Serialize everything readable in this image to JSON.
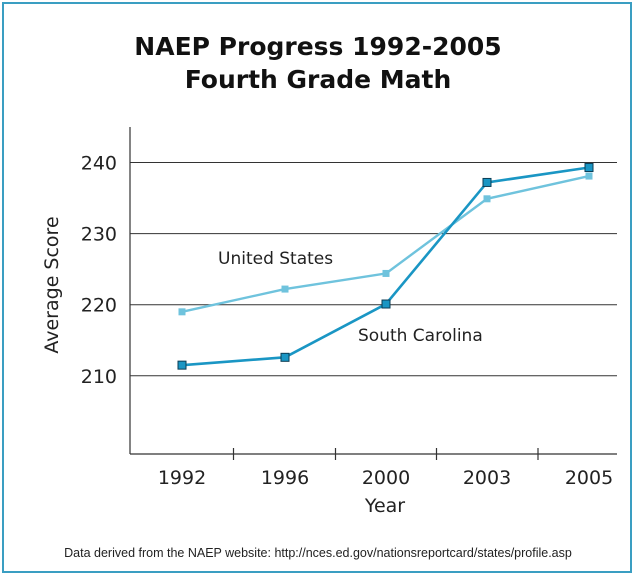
{
  "chart_data": {
    "type": "line",
    "title": "NAEP Progress 1992-2005",
    "subtitle": "Fourth Grade Math",
    "xlabel": "Year",
    "ylabel": "Average Score",
    "categories": [
      "1992",
      "1996",
      "2000",
      "2003",
      "2005"
    ],
    "y_ticks": [
      "240",
      "230",
      "220",
      "210"
    ],
    "ylim": [
      199,
      245
    ],
    "grid": true,
    "series": [
      {
        "name": "United States",
        "values": [
          219,
          222.2,
          224.4,
          234.9,
          238.1
        ],
        "color": "#6fc3dd"
      },
      {
        "name": "South Carolina",
        "values": [
          211.5,
          212.6,
          220.1,
          237.2,
          239.3
        ],
        "color": "#1a96c4"
      }
    ],
    "footnote": "Data derived from the NAEP website: http://nces.ed.gov/nationsreportcard/states/profile.asp"
  }
}
